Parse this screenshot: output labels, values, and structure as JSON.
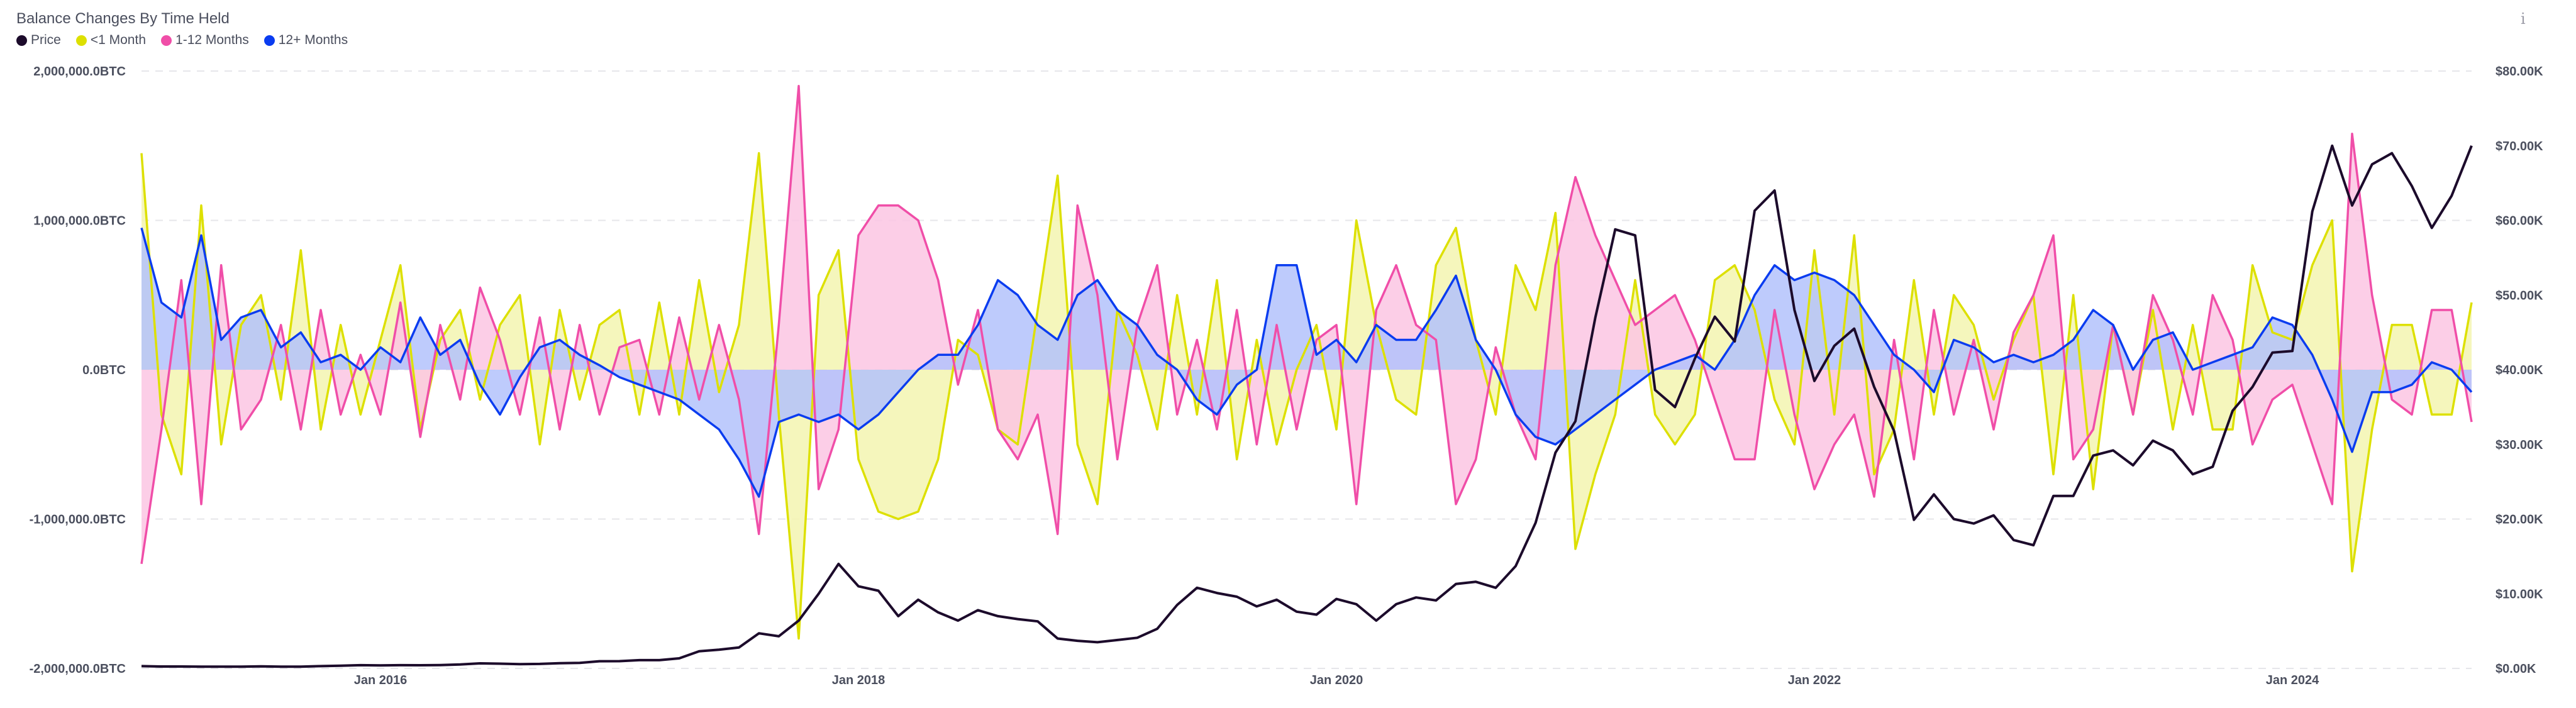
{
  "header": {
    "title": "Balance Changes By Time Held",
    "info_icon": "info-icon"
  },
  "legend": [
    {
      "label": "Price",
      "color": "#1c0b2b"
    },
    {
      "label": "<1 Month",
      "color": "#dde000"
    },
    {
      "label": "1-12 Months",
      "color": "#f04ea8"
    },
    {
      "label": "12+ Months",
      "color": "#0a3cf0"
    }
  ],
  "chart_data": {
    "type": "area",
    "title": "Balance Changes By Time Held",
    "x_start": "Jan 2015",
    "x_frequency": "monthly",
    "x_end": "Oct 2024",
    "x_ticks": [
      "Jan 2016",
      "Jan 2018",
      "Jan 2020",
      "Jan 2022",
      "Jan 2024"
    ],
    "y_left": {
      "unit": "BTC",
      "range": [
        -2000000,
        2000000
      ],
      "ticks": [
        "2,000,000.0BTC",
        "1,000,000.0BTC",
        "0.0BTC",
        "-1,000,000.0BTC",
        "-2,000,000.0BTC"
      ]
    },
    "y_right": {
      "unit": "USD",
      "range": [
        0,
        80000
      ],
      "ticks": [
        "$80.00K",
        "$70.00K",
        "$60.00K",
        "$50.00K",
        "$40.00K",
        "$30.00K",
        "$20.00K",
        "$10.00K",
        "$0.00K"
      ]
    },
    "grid": true,
    "legend_position": "top-left",
    "series": [
      {
        "name": "<1 Month",
        "axis": "left",
        "unit": "thousand BTC",
        "fill": "#f3f5b0",
        "color": "#dde000",
        "values": [
          1450,
          -300,
          -700,
          1100,
          -500,
          300,
          500,
          -200,
          800,
          -400,
          300,
          -300,
          200,
          700,
          -400,
          200,
          400,
          -200,
          300,
          500,
          -500,
          400,
          -200,
          300,
          400,
          -300,
          450,
          -300,
          600,
          -150,
          300,
          1450,
          -300,
          -1800,
          500,
          800,
          -600,
          -950,
          -1000,
          -950,
          -600,
          200,
          100,
          -400,
          -500,
          400,
          1300,
          -500,
          -900,
          400,
          100,
          -400,
          500,
          -300,
          600,
          -600,
          200,
          -500,
          0,
          300,
          -400,
          1000,
          300,
          -200,
          -300,
          700,
          950,
          200,
          -300,
          700,
          400,
          1050,
          -1200,
          -700,
          -300,
          600,
          -300,
          -500,
          -300,
          600,
          700,
          400,
          -200,
          -500,
          800,
          -300,
          900,
          -700,
          -400,
          600,
          -300,
          500,
          300,
          -200,
          200,
          500,
          -700,
          500,
          -800,
          300,
          -300,
          400,
          -400,
          300,
          -400,
          -400,
          700,
          250,
          200,
          700,
          1000,
          -1350,
          -400,
          300,
          300,
          -300,
          -300,
          450
        ]
      },
      {
        "name": "1-12 Months",
        "axis": "left",
        "unit": "thousand BTC",
        "fill": "#fcc5e3",
        "color": "#f04ea8",
        "values": [
          -1300,
          -400,
          600,
          -900,
          700,
          -400,
          -200,
          300,
          -400,
          400,
          -300,
          100,
          -300,
          450,
          -450,
          300,
          -200,
          550,
          200,
          -300,
          350,
          -400,
          300,
          -300,
          150,
          200,
          -300,
          350,
          -200,
          300,
          -200,
          -1100,
          300,
          1900,
          -800,
          -400,
          900,
          1100,
          1100,
          1000,
          600,
          -100,
          400,
          -400,
          -600,
          -300,
          -1100,
          1100,
          500,
          -600,
          300,
          700,
          -300,
          200,
          -400,
          400,
          -500,
          300,
          -400,
          200,
          300,
          -900,
          400,
          700,
          300,
          200,
          -900,
          -600,
          150,
          -300,
          -600,
          700,
          1290,
          900,
          600,
          300,
          400,
          500,
          200,
          -200,
          -600,
          -600,
          400,
          -300,
          -800,
          -500,
          -300,
          -850,
          200,
          -600,
          400,
          -300,
          200,
          -400,
          250,
          500,
          900,
          -600,
          -400,
          300,
          -300,
          500,
          200,
          -300,
          500,
          200,
          -500,
          -200,
          -100,
          -500,
          -900,
          1580,
          500,
          -200,
          -300,
          400,
          400,
          -350
        ]
      },
      {
        "name": "12+ Months",
        "axis": "left",
        "unit": "thousand BTC",
        "fill": "#b3c2fb",
        "color": "#0a3cf0",
        "values": [
          950,
          450,
          350,
          900,
          200,
          350,
          400,
          150,
          250,
          50,
          100,
          0,
          150,
          50,
          350,
          100,
          200,
          -100,
          -300,
          -50,
          150,
          200,
          100,
          30,
          -50,
          -100,
          -150,
          -200,
          -300,
          -400,
          -600,
          -850,
          -350,
          -300,
          -350,
          -300,
          -400,
          -300,
          -150,
          0,
          100,
          100,
          300,
          600,
          500,
          300,
          200,
          500,
          600,
          400,
          300,
          100,
          0,
          -200,
          -300,
          -100,
          0,
          700,
          700,
          100,
          200,
          50,
          300,
          200,
          200,
          400,
          630,
          200,
          0,
          -300,
          -450,
          -500,
          -400,
          -300,
          -200,
          -100,
          0,
          50,
          100,
          0,
          200,
          500,
          700,
          600,
          650,
          600,
          500,
          300,
          100,
          0,
          -150,
          200,
          150,
          50,
          100,
          50,
          100,
          200,
          400,
          300,
          0,
          200,
          250,
          0,
          50,
          100,
          150,
          350,
          300,
          100,
          -200,
          -550,
          -150,
          -150,
          -100,
          50,
          0,
          -150
        ]
      },
      {
        "name": "Price",
        "axis": "right",
        "unit": "thousand USD",
        "color": "#1c0b2b",
        "values": [
          0.3,
          0.25,
          0.25,
          0.23,
          0.24,
          0.23,
          0.28,
          0.23,
          0.23,
          0.3,
          0.35,
          0.43,
          0.4,
          0.43,
          0.42,
          0.45,
          0.53,
          0.67,
          0.63,
          0.57,
          0.6,
          0.7,
          0.74,
          0.96,
          0.97,
          1.1,
          1.1,
          1.35,
          2.3,
          2.5,
          2.8,
          4.7,
          4.3,
          6.4,
          10.0,
          14.0,
          11.0,
          10.4,
          7.0,
          9.2,
          7.5,
          6.4,
          7.8,
          7.0,
          6.6,
          6.3,
          4.0,
          3.7,
          3.5,
          3.8,
          4.1,
          5.3,
          8.5,
          10.8,
          10.1,
          9.6,
          8.3,
          9.2,
          7.6,
          7.2,
          9.3,
          8.6,
          6.4,
          8.6,
          9.5,
          9.1,
          11.3,
          11.6,
          10.8,
          13.7,
          19.5,
          28.9,
          33.1,
          47.0,
          58.8,
          58.0,
          37.3,
          35.0,
          41.5,
          47.1,
          43.8,
          61.3,
          64.0,
          48.0,
          38.5,
          43.2,
          45.5,
          37.7,
          31.8,
          19.9,
          23.3,
          20.0,
          19.4,
          20.5,
          17.2,
          16.5,
          23.1,
          23.1,
          28.5,
          29.2,
          27.2,
          30.5,
          29.2,
          26.0,
          27.0,
          34.5,
          37.7,
          42.3,
          42.5,
          61.2,
          70.0,
          62.0,
          67.5,
          69.0,
          64.6,
          59.0,
          63.3,
          70.0
        ]
      }
    ]
  }
}
